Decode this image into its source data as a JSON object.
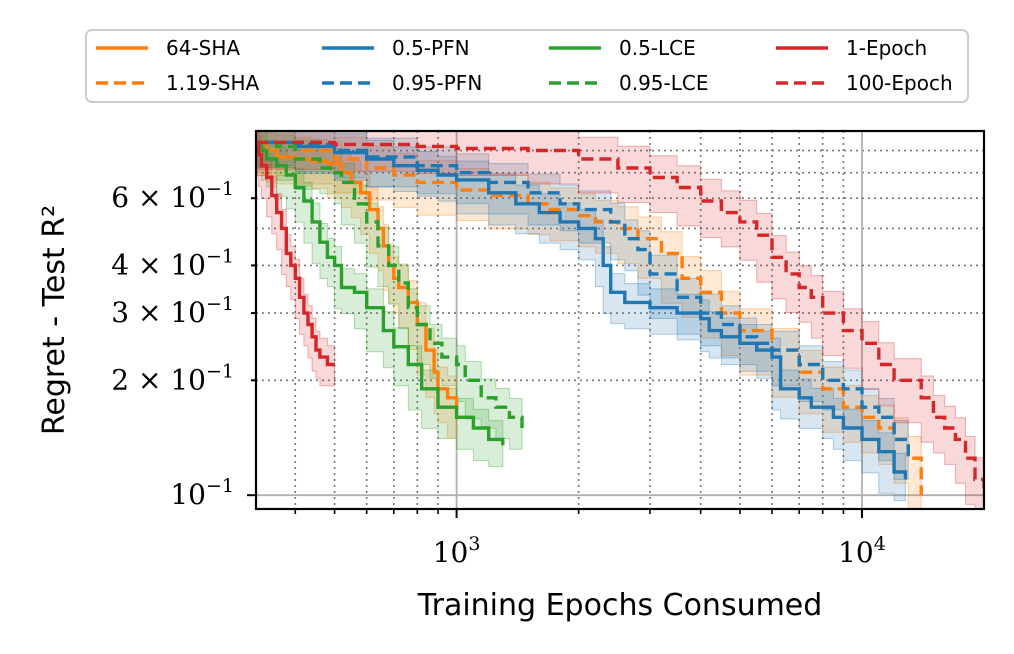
{
  "chart_data": {
    "type": "line",
    "x_scale": "log",
    "y_scale": "log",
    "xlabel": "Training Epochs Consumed",
    "ylabel": "Regret - Test R²",
    "xlim": [
      320,
      20000
    ],
    "ylim": [
      0.092,
      0.9
    ],
    "x_ticks": [
      {
        "value": 1000,
        "base": "10",
        "exp": "3"
      },
      {
        "value": 10000,
        "base": "10",
        "exp": "4"
      }
    ],
    "y_ticks": [
      {
        "value": 0.6,
        "coef": "6 × ",
        "base": "10",
        "exp": "−1"
      },
      {
        "value": 0.4,
        "coef": "4 × ",
        "base": "10",
        "exp": "−1"
      },
      {
        "value": 0.3,
        "coef": "3 × ",
        "base": "10",
        "exp": "−1"
      },
      {
        "value": 0.2,
        "coef": "2 × ",
        "base": "10",
        "exp": "−1"
      },
      {
        "value": 0.1,
        "coef": "",
        "base": "10",
        "exp": "−1"
      }
    ],
    "legend_position": "top",
    "series": [
      {
        "name": "64-SHA",
        "color": "#ff7f0e",
        "dash": "solid",
        "band": 0.14,
        "points": [
          [
            320,
            0.84
          ],
          [
            340,
            0.8
          ],
          [
            360,
            0.77
          ],
          [
            400,
            0.76
          ],
          [
            440,
            0.75
          ],
          [
            480,
            0.74
          ],
          [
            520,
            0.7
          ],
          [
            550,
            0.66
          ],
          [
            580,
            0.62
          ],
          [
            610,
            0.56
          ],
          [
            640,
            0.5
          ],
          [
            660,
            0.45
          ],
          [
            680,
            0.4
          ],
          [
            700,
            0.37
          ],
          [
            720,
            0.35
          ],
          [
            760,
            0.32
          ],
          [
            800,
            0.28
          ],
          [
            840,
            0.24
          ],
          [
            880,
            0.21
          ],
          [
            900,
            0.19
          ],
          [
            950,
            0.18
          ],
          [
            1000,
            0.165
          ]
        ]
      },
      {
        "name": "1.19-SHA",
        "color": "#ff7f0e",
        "dash": "dashed",
        "band": 0.14,
        "points": [
          [
            320,
            0.84
          ],
          [
            400,
            0.8
          ],
          [
            500,
            0.76
          ],
          [
            600,
            0.72
          ],
          [
            700,
            0.69
          ],
          [
            800,
            0.66
          ],
          [
            1000,
            0.63
          ],
          [
            1200,
            0.61
          ],
          [
            1500,
            0.58
          ],
          [
            1700,
            0.56
          ],
          [
            2000,
            0.54
          ],
          [
            2200,
            0.52
          ],
          [
            2500,
            0.5
          ],
          [
            2800,
            0.47
          ],
          [
            3200,
            0.43
          ],
          [
            3600,
            0.37
          ],
          [
            4000,
            0.34
          ],
          [
            4500,
            0.3
          ],
          [
            5000,
            0.27
          ],
          [
            6000,
            0.24
          ],
          [
            7000,
            0.21
          ],
          [
            8000,
            0.19
          ],
          [
            9000,
            0.17
          ],
          [
            10000,
            0.16
          ],
          [
            11000,
            0.15
          ],
          [
            12000,
            0.14
          ],
          [
            13000,
            0.125
          ],
          [
            14000,
            0.1
          ]
        ]
      },
      {
        "name": "0.5-PFN",
        "color": "#1f77b4",
        "dash": "solid",
        "band": 0.12,
        "points": [
          [
            320,
            0.84
          ],
          [
            400,
            0.82
          ],
          [
            500,
            0.79
          ],
          [
            600,
            0.76
          ],
          [
            700,
            0.73
          ],
          [
            800,
            0.71
          ],
          [
            900,
            0.69
          ],
          [
            1000,
            0.67
          ],
          [
            1200,
            0.62
          ],
          [
            1400,
            0.58
          ],
          [
            1600,
            0.55
          ],
          [
            1800,
            0.52
          ],
          [
            2000,
            0.5
          ],
          [
            2200,
            0.47
          ],
          [
            2300,
            0.4
          ],
          [
            2400,
            0.34
          ],
          [
            2600,
            0.32
          ],
          [
            3000,
            0.31
          ],
          [
            3500,
            0.3
          ],
          [
            4000,
            0.29
          ],
          [
            4200,
            0.27
          ],
          [
            4500,
            0.26
          ],
          [
            5000,
            0.25
          ],
          [
            5500,
            0.24
          ],
          [
            6000,
            0.23
          ],
          [
            6300,
            0.19
          ],
          [
            7000,
            0.18
          ],
          [
            7500,
            0.17
          ],
          [
            8000,
            0.17
          ],
          [
            8500,
            0.16
          ],
          [
            9000,
            0.15
          ],
          [
            10000,
            0.14
          ],
          [
            11000,
            0.13
          ],
          [
            12000,
            0.115
          ],
          [
            12800,
            0.11
          ]
        ]
      },
      {
        "name": "0.95-PFN",
        "color": "#1f77b4",
        "dash": "dashed",
        "band": 0.12,
        "points": [
          [
            320,
            0.84
          ],
          [
            400,
            0.83
          ],
          [
            500,
            0.8
          ],
          [
            600,
            0.77
          ],
          [
            800,
            0.73
          ],
          [
            1000,
            0.7
          ],
          [
            1200,
            0.66
          ],
          [
            1500,
            0.62
          ],
          [
            1800,
            0.58
          ],
          [
            2000,
            0.56
          ],
          [
            2400,
            0.52
          ],
          [
            2600,
            0.47
          ],
          [
            2800,
            0.44
          ],
          [
            3000,
            0.38
          ],
          [
            3500,
            0.33
          ],
          [
            4000,
            0.3
          ],
          [
            4500,
            0.28
          ],
          [
            5000,
            0.26
          ],
          [
            5500,
            0.25
          ],
          [
            6000,
            0.24
          ],
          [
            7000,
            0.22
          ],
          [
            8000,
            0.2
          ],
          [
            9000,
            0.19
          ],
          [
            10000,
            0.17
          ],
          [
            11000,
            0.16
          ],
          [
            12000,
            0.14
          ],
          [
            13000,
            0.125
          ]
        ]
      },
      {
        "name": "0.5-LCE",
        "color": "#2ca02c",
        "dash": "solid",
        "band": 0.12,
        "points": [
          [
            320,
            0.84
          ],
          [
            330,
            0.8
          ],
          [
            340,
            0.76
          ],
          [
            360,
            0.73
          ],
          [
            380,
            0.69
          ],
          [
            400,
            0.64
          ],
          [
            420,
            0.59
          ],
          [
            440,
            0.52
          ],
          [
            460,
            0.46
          ],
          [
            480,
            0.42
          ],
          [
            500,
            0.4
          ],
          [
            520,
            0.35
          ],
          [
            560,
            0.34
          ],
          [
            600,
            0.31
          ],
          [
            660,
            0.27
          ],
          [
            700,
            0.245
          ],
          [
            760,
            0.22
          ],
          [
            820,
            0.19
          ],
          [
            900,
            0.17
          ],
          [
            1000,
            0.16
          ],
          [
            1100,
            0.15
          ],
          [
            1200,
            0.14
          ],
          [
            1300,
            0.135
          ]
        ]
      },
      {
        "name": "0.95-LCE",
        "color": "#2ca02c",
        "dash": "dashed",
        "band": 0.12,
        "points": [
          [
            320,
            0.84
          ],
          [
            360,
            0.82
          ],
          [
            400,
            0.76
          ],
          [
            460,
            0.72
          ],
          [
            500,
            0.7
          ],
          [
            520,
            0.66
          ],
          [
            560,
            0.58
          ],
          [
            600,
            0.52
          ],
          [
            640,
            0.45
          ],
          [
            680,
            0.4
          ],
          [
            720,
            0.36
          ],
          [
            760,
            0.31
          ],
          [
            800,
            0.28
          ],
          [
            860,
            0.25
          ],
          [
            920,
            0.23
          ],
          [
            1000,
            0.22
          ],
          [
            1050,
            0.2
          ],
          [
            1150,
            0.18
          ],
          [
            1250,
            0.17
          ],
          [
            1350,
            0.16
          ],
          [
            1450,
            0.15
          ]
        ]
      },
      {
        "name": "1-Epoch",
        "color": "#d62728",
        "dash": "solid",
        "band": 0.12,
        "points": [
          [
            320,
            0.84
          ],
          [
            325,
            0.78
          ],
          [
            330,
            0.73
          ],
          [
            340,
            0.68
          ],
          [
            350,
            0.61
          ],
          [
            360,
            0.55
          ],
          [
            370,
            0.5
          ],
          [
            380,
            0.43
          ],
          [
            390,
            0.4
          ],
          [
            400,
            0.37
          ],
          [
            410,
            0.33
          ],
          [
            420,
            0.3
          ],
          [
            430,
            0.28
          ],
          [
            440,
            0.26
          ],
          [
            450,
            0.24
          ],
          [
            460,
            0.23
          ],
          [
            480,
            0.22
          ],
          [
            500,
            0.22
          ]
        ]
      },
      {
        "name": "100-Epoch",
        "color": "#d62728",
        "dash": "dashed",
        "band": 0.14,
        "points": [
          [
            320,
            0.84
          ],
          [
            500,
            0.83
          ],
          [
            800,
            0.82
          ],
          [
            1000,
            0.81
          ],
          [
            1500,
            0.8
          ],
          [
            2000,
            0.76
          ],
          [
            2500,
            0.72
          ],
          [
            3000,
            0.68
          ],
          [
            3500,
            0.64
          ],
          [
            4000,
            0.59
          ],
          [
            4500,
            0.55
          ],
          [
            5000,
            0.52
          ],
          [
            5500,
            0.48
          ],
          [
            6000,
            0.42
          ],
          [
            6500,
            0.38
          ],
          [
            7000,
            0.35
          ],
          [
            7500,
            0.33
          ],
          [
            8000,
            0.3
          ],
          [
            9000,
            0.27
          ],
          [
            10000,
            0.25
          ],
          [
            11000,
            0.22
          ],
          [
            12000,
            0.2
          ],
          [
            14000,
            0.18
          ],
          [
            15000,
            0.16
          ],
          [
            16000,
            0.15
          ],
          [
            17000,
            0.14
          ],
          [
            18000,
            0.125
          ],
          [
            19000,
            0.11
          ],
          [
            20000,
            0.1
          ]
        ]
      }
    ]
  }
}
